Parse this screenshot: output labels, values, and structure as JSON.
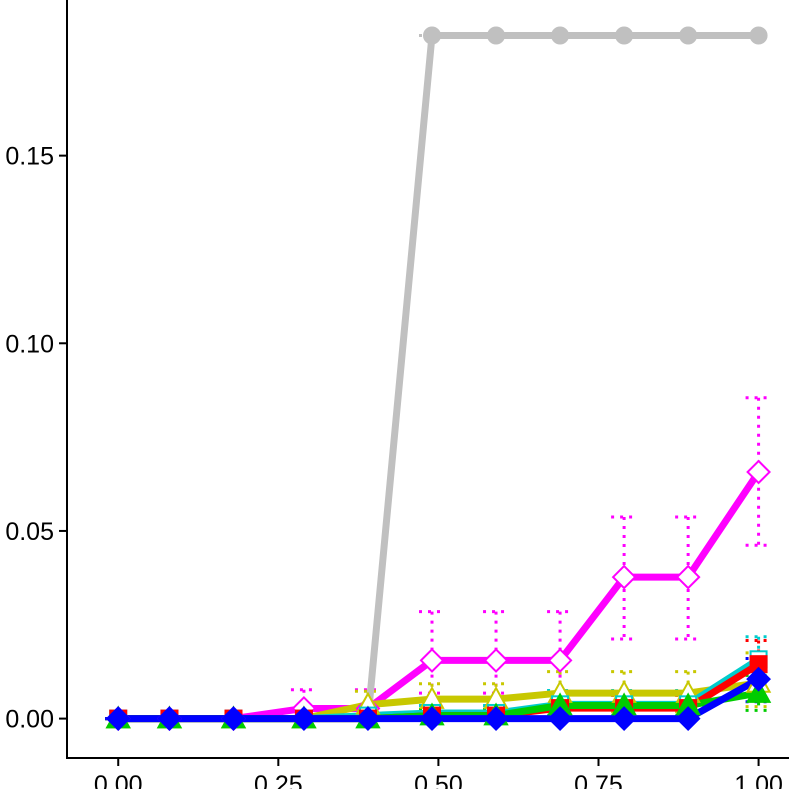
{
  "chart_data": {
    "type": "line",
    "title": "",
    "xlabel": "",
    "ylabel": "",
    "xlim": [
      -0.08,
      1.06
    ],
    "ylim": [
      -0.0105,
      0.192
    ],
    "x_ticks": [
      {
        "value": 0.0,
        "label": "0.00"
      },
      {
        "value": 0.25,
        "label": "0.25"
      },
      {
        "value": 0.5,
        "label": "0.50"
      },
      {
        "value": 0.75,
        "label": "0.75"
      },
      {
        "value": 1.0,
        "label": "1.00"
      }
    ],
    "y_ticks": [
      {
        "value": 0.0,
        "label": "0.00"
      },
      {
        "value": 0.05,
        "label": "0.05"
      },
      {
        "value": 0.1,
        "label": "0.10"
      },
      {
        "value": 0.15,
        "label": "0.15"
      }
    ],
    "grid": false,
    "legend": "none",
    "series": [
      {
        "color": "#c0c0c0",
        "marker": "circle-filled",
        "x": [
          0.0,
          0.08,
          0.18,
          0.29,
          0.39,
          0.49,
          0.59,
          0.69,
          0.79,
          0.89,
          1.0
        ],
        "y": [
          0.0,
          0.0,
          0.0,
          0.0,
          0.0,
          0.182,
          0.182,
          0.182,
          0.182,
          0.182,
          0.182
        ],
        "error_low": [
          null,
          null,
          null,
          null,
          null,
          0.182,
          0.182,
          0.182,
          0.182,
          0.182,
          0.182
        ],
        "error_high": [
          null,
          null,
          null,
          null,
          null,
          0.182,
          0.182,
          0.182,
          0.182,
          0.182,
          0.182
        ],
        "markers_from": 5
      },
      {
        "color": "#ff00ff",
        "marker": "diamond-open",
        "x": [
          0.0,
          0.08,
          0.18,
          0.29,
          0.39,
          0.49,
          0.59,
          0.69,
          0.79,
          0.89,
          1.0
        ],
        "y": [
          0.0,
          0.0,
          0.0,
          0.0027,
          0.0027,
          0.0155,
          0.0155,
          0.0155,
          0.0377,
          0.0377,
          0.0657
        ],
        "error_low": [
          0.0,
          0.0,
          0.0,
          0.0,
          0.0,
          0.0068,
          0.0068,
          0.0068,
          0.0212,
          0.0212,
          0.0462
        ],
        "error_high": [
          0.0,
          0.0,
          0.0,
          0.0077,
          0.0077,
          0.0285,
          0.0285,
          0.0285,
          0.0537,
          0.0537,
          0.0855
        ]
      },
      {
        "color": "#c8c800",
        "marker": "triangle-open",
        "x": [
          0.0,
          0.08,
          0.18,
          0.29,
          0.39,
          0.49,
          0.59,
          0.69,
          0.79,
          0.89,
          1.0
        ],
        "y": [
          0.0,
          0.0,
          0.0,
          0.0,
          0.0037,
          0.0052,
          0.0052,
          0.0068,
          0.0068,
          0.0068,
          0.0095
        ],
        "error_low": [
          0.0,
          0.0,
          0.0,
          0.0,
          0.0,
          0.0008,
          0.0008,
          0.0018,
          0.0018,
          0.0018,
          0.0032
        ],
        "error_high": [
          0.0,
          0.0,
          0.0,
          0.0,
          0.0073,
          0.0093,
          0.0093,
          0.0125,
          0.0125,
          0.0125,
          0.0175
        ]
      },
      {
        "color": "#00cccc",
        "marker": "square-open",
        "x": [
          0.0,
          0.08,
          0.18,
          0.29,
          0.39,
          0.49,
          0.59,
          0.69,
          0.79,
          0.89,
          1.0
        ],
        "y": [
          0.0,
          0.0,
          0.0,
          0.0,
          0.0008,
          0.0015,
          0.0015,
          0.0038,
          0.0038,
          0.0038,
          0.0158
        ],
        "error_low": [
          0.0,
          0.0,
          0.0,
          0.0,
          0.0,
          0.0,
          0.0,
          0.0008,
          0.0008,
          0.0008,
          0.0095
        ],
        "error_high": [
          0.0,
          0.0,
          0.0,
          0.0,
          0.0028,
          0.0035,
          0.0035,
          0.0075,
          0.0075,
          0.0075,
          0.0218
        ]
      },
      {
        "color": "#ff0000",
        "marker": "square-filled",
        "x": [
          0.0,
          0.08,
          0.18,
          0.29,
          0.39,
          0.49,
          0.59,
          0.69,
          0.79,
          0.89,
          1.0
        ],
        "y": [
          0.0,
          0.0,
          0.0,
          0.0,
          0.0,
          0.0008,
          0.0008,
          0.0028,
          0.0028,
          0.0028,
          0.0145
        ],
        "error_low": [
          0.0,
          0.0,
          0.0,
          0.0,
          0.0,
          0.0,
          0.0,
          0.0,
          0.0,
          0.0,
          0.0085
        ],
        "error_high": [
          0.0,
          0.0,
          0.0,
          0.0,
          0.0,
          0.0025,
          0.0025,
          0.0062,
          0.0062,
          0.0062,
          0.0208
        ]
      },
      {
        "color": "#00cc00",
        "marker": "triangle-filled",
        "x": [
          0.0,
          0.08,
          0.18,
          0.29,
          0.39,
          0.49,
          0.59,
          0.69,
          0.79,
          0.89,
          1.0
        ],
        "y": [
          0.0,
          0.0,
          0.0,
          0.0,
          0.0,
          0.0008,
          0.0008,
          0.0035,
          0.0035,
          0.0035,
          0.0068
        ],
        "error_low": [
          0.0,
          0.0,
          0.0,
          0.0,
          0.0,
          0.0,
          0.0,
          0.0006,
          0.0006,
          0.0006,
          0.0022
        ],
        "error_high": [
          0.0,
          0.0,
          0.0,
          0.0,
          0.0,
          0.0025,
          0.0025,
          0.0068,
          0.0068,
          0.0068,
          0.0115
        ]
      },
      {
        "color": "#0000ff",
        "marker": "diamond-filled",
        "x": [
          0.0,
          0.08,
          0.18,
          0.29,
          0.39,
          0.49,
          0.59,
          0.69,
          0.79,
          0.89,
          1.0
        ],
        "y": [
          0.0,
          0.0,
          0.0,
          0.0,
          0.0,
          0.0,
          0.0,
          0.0,
          0.0,
          0.0,
          0.0105
        ],
        "error_low": [
          0.0,
          0.0,
          0.0,
          0.0,
          0.0,
          0.0,
          0.0,
          0.0,
          0.0,
          0.0,
          0.0045
        ],
        "error_high": [
          0.0,
          0.0,
          0.0,
          0.0,
          0.0,
          0.0,
          0.0,
          0.0,
          0.0,
          0.0,
          0.016
        ]
      }
    ]
  }
}
